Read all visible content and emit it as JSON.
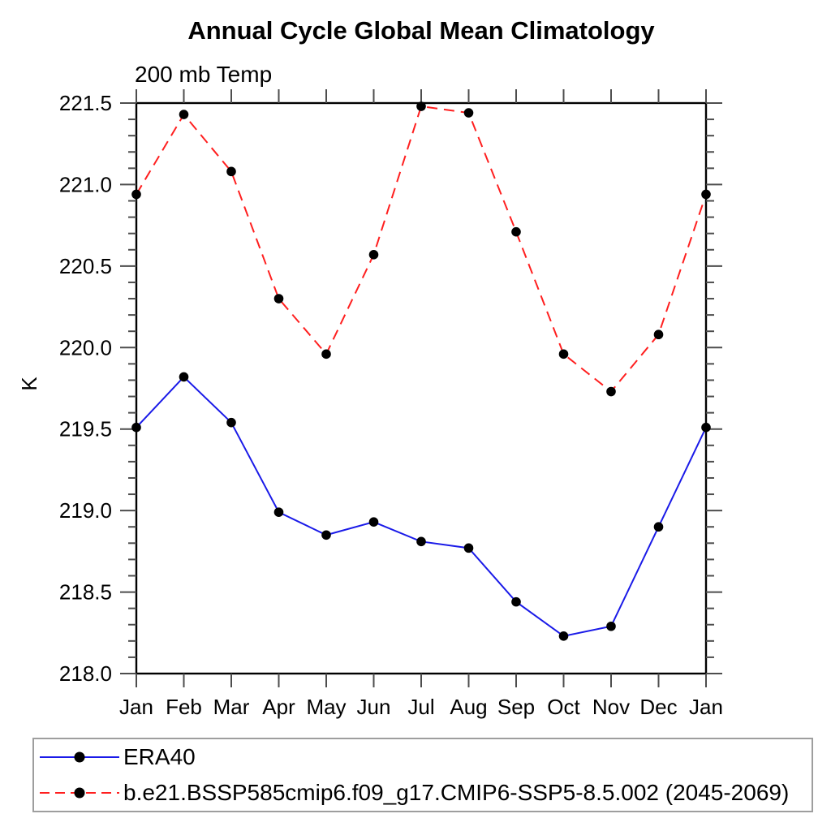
{
  "title": "Annual Cycle Global Mean Climatology",
  "subtitle": "200 mb Temp",
  "ylabel": "K",
  "chart_data": {
    "type": "line",
    "x_categories": [
      "Jan",
      "Feb",
      "Mar",
      "Apr",
      "May",
      "Jun",
      "Jul",
      "Aug",
      "Sep",
      "Oct",
      "Nov",
      "Dec",
      "Jan"
    ],
    "ylim": [
      218.0,
      221.5
    ],
    "y_tick_labels": [
      "218.0",
      "218.5",
      "219.0",
      "219.5",
      "220.0",
      "220.5",
      "221.0",
      "221.5"
    ],
    "y_minor_step": 0.1,
    "grid": false,
    "legend_position": "bottom-left-box",
    "axis_color": "#000000",
    "tick_color": "#4d4d4d",
    "series": [
      {
        "name": "ERA40",
        "line_color": "#1a1ae8",
        "line_style": "solid",
        "marker": "filled-circle",
        "marker_color": "#000000",
        "values": [
          219.51,
          219.82,
          219.54,
          218.99,
          218.85,
          218.93,
          218.81,
          218.77,
          218.44,
          218.23,
          218.29,
          218.9,
          219.51
        ]
      },
      {
        "name": "b.e21.BSSP585cmip6.f09_g17.CMIP6-SSP5-8.5.002 (2045-2069)",
        "line_color": "#ff1f1f",
        "line_style": "dashed",
        "marker": "filled-circle",
        "marker_color": "#000000",
        "values": [
          220.94,
          221.43,
          221.08,
          220.3,
          219.96,
          220.57,
          221.48,
          221.44,
          220.71,
          219.96,
          219.73,
          220.08,
          220.94
        ]
      }
    ]
  }
}
